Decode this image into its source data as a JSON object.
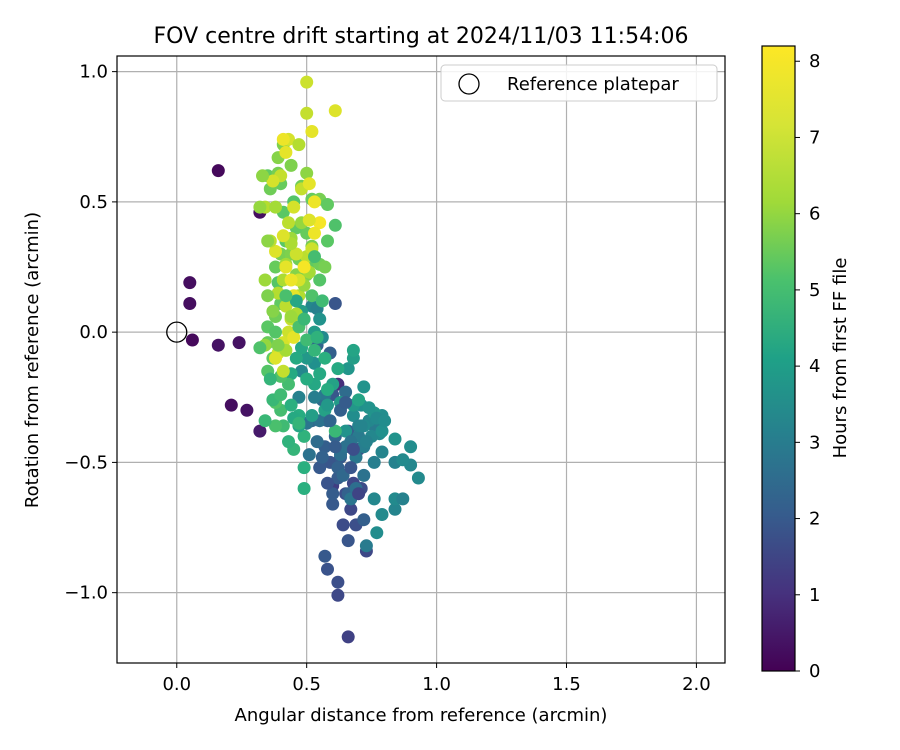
{
  "chart_data": {
    "type": "scatter",
    "title": "FOV centre drift starting at 2024/11/03 11:54:06",
    "xlabel": "Angular distance from reference (arcmin)",
    "ylabel": "Rotation from reference (arcmin)",
    "xlim": [
      -0.23,
      2.11
    ],
    "ylim": [
      -1.27,
      1.06
    ],
    "xticks": [
      0.0,
      0.5,
      1.0,
      1.5,
      2.0
    ],
    "xtick_labels": [
      "0.0",
      "0.5",
      "1.0",
      "1.5",
      "2.0"
    ],
    "yticks": [
      -1.0,
      -0.5,
      0.0,
      0.5,
      1.0
    ],
    "ytick_labels": [
      "−1.0",
      "−0.5",
      "0.0",
      "0.5",
      "1.0"
    ],
    "grid": true,
    "legend": {
      "position": "top-right",
      "entries": [
        "Reference platepar"
      ]
    },
    "reference_point": {
      "x": 0.0,
      "y": 0.0,
      "label": "Reference platepar"
    },
    "colorbar": {
      "label": "Hours from first FF file",
      "colormap": "viridis",
      "range": [
        0,
        8.2
      ],
      "ticks": [
        0,
        1,
        2,
        3,
        4,
        5,
        6,
        7,
        8
      ],
      "tick_labels": [
        "0",
        "1",
        "2",
        "3",
        "4",
        "5",
        "6",
        "7",
        "8"
      ]
    },
    "points": [
      [
        0.16,
        0.62,
        0.2
      ],
      [
        0.05,
        0.19,
        0.3
      ],
      [
        0.05,
        0.11,
        0.3
      ],
      [
        0.06,
        -0.03,
        0.2
      ],
      [
        0.16,
        -0.05,
        0.4
      ],
      [
        0.24,
        -0.04,
        0.4
      ],
      [
        0.21,
        -0.28,
        0.3
      ],
      [
        0.27,
        -0.3,
        0.4
      ],
      [
        0.32,
        -0.38,
        0.6
      ],
      [
        0.32,
        0.46,
        0.3
      ],
      [
        0.62,
        -0.2,
        1.1
      ],
      [
        0.6,
        -0.59,
        1.5
      ],
      [
        0.66,
        -1.17,
        1.6
      ],
      [
        0.62,
        -1.01,
        1.8
      ],
      [
        0.62,
        -0.96,
        2.0
      ],
      [
        0.58,
        -0.91,
        2.1
      ],
      [
        0.57,
        -0.86,
        2.3
      ],
      [
        0.66,
        -0.8,
        2.2
      ],
      [
        0.64,
        -0.74,
        1.9
      ],
      [
        0.69,
        -0.74,
        2.0
      ],
      [
        0.67,
        -0.68,
        1.8
      ],
      [
        0.6,
        -0.66,
        2.3
      ],
      [
        0.65,
        -0.62,
        2.0
      ],
      [
        0.68,
        -0.58,
        1.8
      ],
      [
        0.62,
        -0.56,
        2.4
      ],
      [
        0.59,
        -0.5,
        2.2
      ],
      [
        0.57,
        -0.44,
        2.5
      ],
      [
        0.63,
        -0.48,
        2.3
      ],
      [
        0.7,
        -0.45,
        2.0
      ],
      [
        0.61,
        -0.4,
        2.7
      ],
      [
        0.66,
        -0.38,
        2.5
      ],
      [
        0.58,
        -0.34,
        2.6
      ],
      [
        0.52,
        -0.34,
        2.8
      ],
      [
        0.56,
        -0.26,
        2.9
      ],
      [
        0.61,
        0.11,
        2.2
      ],
      [
        0.59,
        -0.08,
        2.5
      ],
      [
        0.54,
        -0.05,
        2.7
      ],
      [
        0.6,
        -0.24,
        2.2
      ],
      [
        0.66,
        -0.62,
        2.6
      ],
      [
        0.71,
        -0.6,
        1.9
      ],
      [
        0.73,
        -0.84,
        1.8
      ],
      [
        0.72,
        -0.72,
        2.5
      ],
      [
        0.65,
        -0.23,
        2.9
      ],
      [
        0.63,
        -0.47,
        3.0
      ],
      [
        0.67,
        -0.64,
        3.2
      ],
      [
        0.69,
        -0.48,
        3.3
      ],
      [
        0.72,
        -0.55,
        3.1
      ],
      [
        0.73,
        -0.82,
        3.4
      ],
      [
        0.76,
        -0.64,
        3.8
      ],
      [
        0.77,
        -0.77,
        4.0
      ],
      [
        0.79,
        -0.7,
        3.9
      ],
      [
        0.84,
        -0.68,
        3.7
      ],
      [
        0.84,
        -0.64,
        3.9
      ],
      [
        0.87,
        -0.64,
        3.6
      ],
      [
        0.93,
        -0.56,
        3.9
      ],
      [
        0.9,
        -0.51,
        3.8
      ],
      [
        0.84,
        -0.5,
        3.6
      ],
      [
        0.87,
        -0.49,
        3.9
      ],
      [
        0.9,
        -0.44,
        4.0
      ],
      [
        0.79,
        -0.46,
        3.7
      ],
      [
        0.76,
        -0.5,
        3.5
      ],
      [
        0.84,
        -0.41,
        4.2
      ],
      [
        0.78,
        -0.39,
        3.9
      ],
      [
        0.76,
        -0.36,
        3.4
      ],
      [
        0.74,
        -0.34,
        3.8
      ],
      [
        0.79,
        -0.32,
        4.0
      ],
      [
        0.76,
        -0.31,
        4.3
      ],
      [
        0.72,
        -0.36,
        3.9
      ],
      [
        0.7,
        -0.4,
        3.4
      ],
      [
        0.68,
        -0.32,
        4.0
      ],
      [
        0.71,
        -0.28,
        4.1
      ],
      [
        0.68,
        -0.28,
        4.4
      ],
      [
        0.72,
        -0.21,
        4.2
      ],
      [
        0.66,
        -0.14,
        4.3
      ],
      [
        0.68,
        -0.1,
        4.6
      ],
      [
        0.68,
        -0.07,
        4.8
      ],
      [
        0.7,
        -0.36,
        3.6
      ],
      [
        0.72,
        -0.44,
        3.5
      ],
      [
        0.63,
        -0.27,
        4.5
      ],
      [
        0.6,
        -0.2,
        4.7
      ],
      [
        0.65,
        -0.38,
        4.2
      ],
      [
        0.69,
        -0.6,
        3.0
      ],
      [
        0.67,
        -0.42,
        3.2
      ],
      [
        0.55,
        -0.34,
        3.1
      ],
      [
        0.5,
        -0.35,
        3.2
      ],
      [
        0.51,
        -0.47,
        3.1
      ],
      [
        0.57,
        -0.24,
        3.3
      ],
      [
        0.53,
        -0.25,
        3.5
      ],
      [
        0.47,
        -0.25,
        3.6
      ],
      [
        0.48,
        -0.15,
        3.8
      ],
      [
        0.53,
        -0.12,
        4.1
      ],
      [
        0.5,
        -0.1,
        4.4
      ],
      [
        0.56,
        -0.02,
        3.9
      ],
      [
        0.52,
        0.1,
        3.8
      ],
      [
        0.54,
        0.09,
        3.6
      ],
      [
        0.55,
        0.05,
        4.2
      ],
      [
        0.53,
        0.0,
        4.5
      ],
      [
        0.48,
        0.08,
        4.6
      ],
      [
        0.48,
        -0.06,
        4.9
      ],
      [
        0.44,
        -0.16,
        5.0
      ],
      [
        0.47,
        -0.32,
        5.1
      ],
      [
        0.49,
        -0.4,
        5.3
      ],
      [
        0.45,
        -0.45,
        5.4
      ],
      [
        0.49,
        -0.52,
        5.2
      ],
      [
        0.41,
        -0.36,
        5.6
      ],
      [
        0.38,
        -0.36,
        5.8
      ],
      [
        0.4,
        -0.3,
        5.7
      ],
      [
        0.38,
        -0.27,
        6.0
      ],
      [
        0.43,
        -0.2,
        5.7
      ],
      [
        0.4,
        -0.17,
        5.9
      ],
      [
        0.35,
        -0.15,
        6.0
      ],
      [
        0.37,
        -0.1,
        6.2
      ],
      [
        0.35,
        -0.04,
        6.3
      ],
      [
        0.35,
        0.02,
        6.1
      ],
      [
        0.38,
        0.06,
        6.4
      ],
      [
        0.4,
        0.11,
        6.2
      ],
      [
        0.39,
        0.19,
        6.0
      ],
      [
        0.38,
        0.25,
        6.3
      ],
      [
        0.4,
        0.3,
        6.5
      ],
      [
        0.42,
        0.35,
        6.1
      ],
      [
        0.44,
        0.3,
        6.6
      ],
      [
        0.46,
        0.22,
        6.7
      ],
      [
        0.47,
        0.28,
        6.4
      ],
      [
        0.5,
        0.22,
        6.6
      ],
      [
        0.52,
        0.27,
        6.2
      ],
      [
        0.55,
        0.26,
        6.4
      ],
      [
        0.57,
        0.25,
        6.5
      ],
      [
        0.58,
        0.35,
        6.1
      ],
      [
        0.61,
        0.41,
        5.9
      ],
      [
        0.52,
        0.33,
        6.5
      ],
      [
        0.5,
        0.38,
        6.3
      ],
      [
        0.46,
        0.4,
        6.2
      ],
      [
        0.45,
        0.5,
        6.0
      ],
      [
        0.41,
        0.46,
        6.1
      ],
      [
        0.4,
        0.57,
        6.3
      ],
      [
        0.36,
        0.55,
        6.4
      ],
      [
        0.35,
        0.6,
        6.2
      ],
      [
        0.39,
        0.61,
        6.5
      ],
      [
        0.44,
        0.64,
        6.6
      ],
      [
        0.39,
        0.67,
        6.7
      ],
      [
        0.41,
        0.72,
        6.6
      ],
      [
        0.48,
        0.56,
        6.4
      ],
      [
        0.52,
        0.51,
        6.3
      ],
      [
        0.55,
        0.51,
        6.5
      ],
      [
        0.58,
        0.49,
        6.2
      ],
      [
        0.5,
        0.61,
        6.8
      ],
      [
        0.48,
        0.42,
        6.9
      ],
      [
        0.44,
        0.36,
        7.0
      ],
      [
        0.42,
        0.26,
        7.1
      ],
      [
        0.41,
        0.2,
        7.2
      ],
      [
        0.39,
        0.15,
        7.3
      ],
      [
        0.42,
        0.1,
        7.4
      ],
      [
        0.44,
        0.05,
        7.5
      ],
      [
        0.43,
        0.0,
        7.6
      ],
      [
        0.41,
        -0.04,
        7.7
      ],
      [
        0.39,
        -0.08,
        7.6
      ],
      [
        0.38,
        -0.1,
        7.8
      ],
      [
        0.41,
        -0.15,
        7.5
      ],
      [
        0.45,
        -0.02,
        7.9
      ],
      [
        0.46,
        0.07,
        7.2
      ],
      [
        0.47,
        0.14,
        7.3
      ],
      [
        0.49,
        0.18,
        6.9
      ],
      [
        0.51,
        0.23,
        7.1
      ],
      [
        0.5,
        0.29,
        7.4
      ],
      [
        0.46,
        0.3,
        7.6
      ],
      [
        0.44,
        0.34,
        7.2
      ],
      [
        0.41,
        0.37,
        7.8
      ],
      [
        0.43,
        0.42,
        7.4
      ],
      [
        0.45,
        0.48,
        7.7
      ],
      [
        0.48,
        0.55,
        7.5
      ],
      [
        0.51,
        0.57,
        7.9
      ],
      [
        0.53,
        0.5,
        8.0
      ],
      [
        0.55,
        0.42,
        8.1
      ],
      [
        0.51,
        0.43,
        7.8
      ],
      [
        0.53,
        0.38,
        8.0
      ],
      [
        0.52,
        0.32,
        7.6
      ],
      [
        0.49,
        0.25,
        8.1
      ],
      [
        0.47,
        0.2,
        7.7
      ],
      [
        0.45,
        0.14,
        7.9
      ],
      [
        0.44,
        0.2,
        8.0
      ],
      [
        0.42,
        0.25,
        7.9
      ],
      [
        0.38,
        0.31,
        7.8
      ],
      [
        0.36,
        0.35,
        7.4
      ],
      [
        0.34,
        0.48,
        7.3
      ],
      [
        0.38,
        0.48,
        7.1
      ],
      [
        0.4,
        0.6,
        7.5
      ],
      [
        0.42,
        0.69,
        7.9
      ],
      [
        0.43,
        0.74,
        7.7
      ],
      [
        0.41,
        0.74,
        8.0
      ],
      [
        0.47,
        0.72,
        7.3
      ],
      [
        0.52,
        0.77,
        7.9
      ],
      [
        0.5,
        0.84,
        7.5
      ],
      [
        0.61,
        0.85,
        7.8
      ],
      [
        0.5,
        0.96,
        7.6
      ],
      [
        0.37,
        0.58,
        7.7
      ],
      [
        0.33,
        0.6,
        6.8
      ],
      [
        0.32,
        0.48,
        6.9
      ],
      [
        0.35,
        0.35,
        6.8
      ],
      [
        0.34,
        0.2,
        7.0
      ],
      [
        0.35,
        0.14,
        6.6
      ],
      [
        0.37,
        0.08,
        6.7
      ],
      [
        0.34,
        -0.05,
        6.9
      ],
      [
        0.36,
        -0.18,
        5.4
      ],
      [
        0.37,
        -0.26,
        5.5
      ],
      [
        0.4,
        -0.24,
        5.6
      ],
      [
        0.44,
        -0.28,
        5.2
      ],
      [
        0.45,
        -0.33,
        5.0
      ],
      [
        0.43,
        -0.42,
        5.3
      ],
      [
        0.47,
        -0.36,
        4.8
      ],
      [
        0.52,
        -0.32,
        4.6
      ],
      [
        0.57,
        -0.3,
        4.7
      ],
      [
        0.58,
        -0.28,
        4.4
      ],
      [
        0.53,
        -0.2,
        4.9
      ],
      [
        0.55,
        -0.16,
        5.0
      ],
      [
        0.57,
        -0.1,
        5.2
      ],
      [
        0.53,
        -0.07,
        5.4
      ],
      [
        0.5,
        -0.03,
        5.6
      ],
      [
        0.47,
        0.02,
        5.8
      ],
      [
        0.49,
        0.05,
        5.5
      ],
      [
        0.52,
        0.14,
        5.9
      ],
      [
        0.55,
        0.2,
        6.0
      ],
      [
        0.53,
        0.29,
        5.7
      ],
      [
        0.56,
        0.12,
        5.6
      ],
      [
        0.54,
        -0.02,
        5.3
      ],
      [
        0.58,
        -0.22,
        5.1
      ],
      [
        0.62,
        -0.14,
        5.0
      ],
      [
        0.61,
        -0.38,
        5.5
      ],
      [
        0.7,
        -0.26,
        4.8
      ],
      [
        0.71,
        -0.36,
        3.7
      ],
      [
        0.75,
        -0.4,
        3.8
      ],
      [
        0.77,
        -0.33,
        3.9
      ],
      [
        0.79,
        -0.38,
        4.1
      ],
      [
        0.74,
        -0.29,
        4.2
      ],
      [
        0.73,
        -0.42,
        3.6
      ],
      [
        0.8,
        -0.34,
        4.0
      ],
      [
        0.65,
        -0.44,
        3.1
      ],
      [
        0.62,
        -0.52,
        2.6
      ],
      [
        0.64,
        -0.55,
        2.8
      ],
      [
        0.6,
        -0.62,
        2.4
      ],
      [
        0.58,
        -0.58,
        2.1
      ],
      [
        0.55,
        -0.52,
        2.3
      ],
      [
        0.61,
        -0.44,
        2.4
      ],
      [
        0.67,
        -0.52,
        2.2
      ],
      [
        0.7,
        -0.62,
        1.7
      ],
      [
        0.68,
        -0.45,
        2.0
      ],
      [
        0.56,
        -0.48,
        2.6
      ],
      [
        0.54,
        -0.42,
        2.9
      ],
      [
        0.59,
        -0.34,
        2.7
      ],
      [
        0.63,
        -0.3,
        2.5
      ],
      [
        0.65,
        -0.27,
        2.4
      ],
      [
        0.49,
        -0.6,
        5.2
      ],
      [
        0.47,
        -0.35,
        5.4
      ],
      [
        0.5,
        -0.18,
        5.1
      ],
      [
        0.46,
        -0.1,
        5.0
      ],
      [
        0.46,
        0.12,
        4.9
      ],
      [
        0.42,
        0.14,
        5.8
      ],
      [
        0.38,
        0.0,
        6.0
      ],
      [
        0.32,
        -0.06,
        5.9
      ],
      [
        0.34,
        -0.34,
        5.5
      ],
      [
        0.42,
        -0.07,
        7.1
      ],
      [
        0.44,
        0.06,
        7.0
      ],
      [
        0.39,
        -0.05,
        6.6
      ]
    ]
  }
}
